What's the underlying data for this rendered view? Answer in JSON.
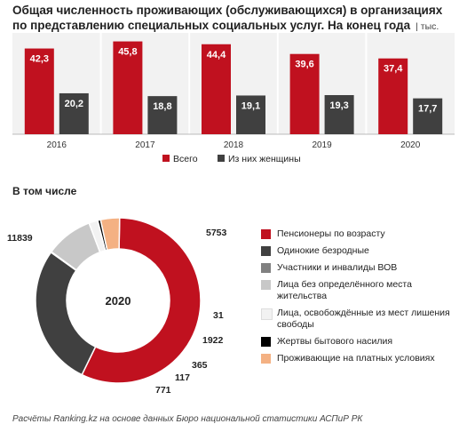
{
  "header": {
    "title": "Общая численность проживающих (обслуживающихся) в организациях по представлению специальных социальных услуг. На конец года",
    "unit": "| тыс. человек"
  },
  "section_title": "В том числе",
  "footer": "Расчёты Ranking.kz на основе данных Бюро национальной статистики АСПиР РК",
  "colors": {
    "red": "#C0111F",
    "dark": "#404040",
    "gray": "#808080",
    "lightgray": "#C8C8C8",
    "white": "#F2F2F2",
    "black": "#000000",
    "peach": "#F4B183"
  },
  "chart_data": [
    {
      "type": "bar",
      "categories": [
        "2016",
        "2017",
        "2018",
        "2019",
        "2020"
      ],
      "series": [
        {
          "name": "Всего",
          "color": "#C0111F",
          "values": [
            42.3,
            45.8,
            44.4,
            39.6,
            37.4
          ],
          "labels": [
            "42,3",
            "45,8",
            "44,4",
            "39,6",
            "37,4"
          ]
        },
        {
          "name": "Из них женщины",
          "color": "#404040",
          "values": [
            20.2,
            18.8,
            19.1,
            19.3,
            17.7
          ],
          "labels": [
            "20,2",
            "18,8",
            "19,1",
            "19,3",
            "17,7"
          ]
        }
      ],
      "ylim": [
        0,
        50
      ],
      "legend": "bottom"
    },
    {
      "type": "pie",
      "center_label": "2020",
      "slices": [
        {
          "name": "Пенсионеры по возрасту",
          "value": 11839,
          "label": "11839",
          "color": "#C0111F"
        },
        {
          "name": "Одинокие безродные",
          "value": 5753,
          "label": "5753",
          "color": "#404040"
        },
        {
          "name": "Участники и инвалиды ВОВ",
          "value": 31,
          "label": "31",
          "color": "#808080"
        },
        {
          "name": "Лица без определённого места жительства",
          "value": 1922,
          "label": "1922",
          "color": "#C8C8C8"
        },
        {
          "name": "Лица, освобождённые из мест лишения свободы",
          "value": 365,
          "label": "365",
          "color": "#F2F2F2"
        },
        {
          "name": "Жертвы бытового насилия",
          "value": 117,
          "label": "117",
          "color": "#000000"
        },
        {
          "name": "Проживающие на платных условиях",
          "value": 771,
          "label": "771",
          "color": "#F4B183"
        }
      ],
      "legend": "right"
    }
  ]
}
